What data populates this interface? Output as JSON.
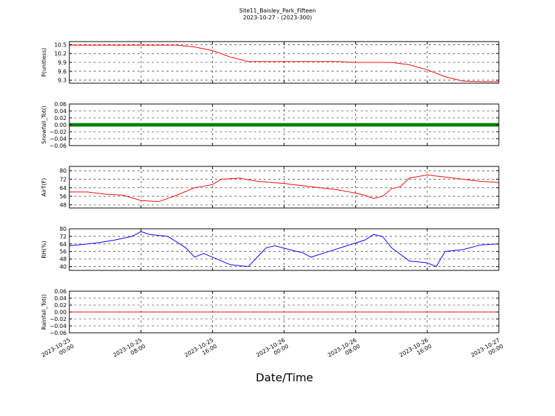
{
  "figure": {
    "title": "Site11_Baisley_Park_Fifteen",
    "subtitle": "2023-10-27 - (2023-300)",
    "xlabel": "Date/Time"
  },
  "chart_data": {
    "type": "line",
    "x_ticks": [
      {
        "at": "2023-10-25 00:00",
        "line1": "2023-10-25",
        "line2": "00:00"
      },
      {
        "at": "2023-10-25 08:00",
        "line1": "2023-10-25",
        "line2": "08:00"
      },
      {
        "at": "2023-10-25 16:00",
        "line1": "2023-10-25",
        "line2": "16:00"
      },
      {
        "at": "2023-10-26 00:00",
        "line1": "2023-10-26",
        "line2": "00:00"
      },
      {
        "at": "2023-10-26 08:00",
        "line1": "2023-10-26",
        "line2": "08:00"
      },
      {
        "at": "2023-10-26 16:00",
        "line1": "2023-10-26",
        "line2": "16:00"
      },
      {
        "at": "2023-10-27 00:00",
        "line1": "2023-10-27",
        "line2": "00:00"
      }
    ],
    "xlim": [
      "2023-10-25 00:00",
      "2023-10-27 00:00"
    ],
    "panels": [
      {
        "ylabel": "P(unitless)",
        "ylim": [
          9.2,
          10.6
        ],
        "yticks": [
          9.3,
          9.6,
          9.9,
          10.2,
          10.5
        ],
        "ytick_labels": [
          "9.3",
          "9.6",
          "9.9",
          "10.2",
          "10.5"
        ],
        "color": "#ff0000",
        "style": "line",
        "points": [
          [
            "2023-10-25 00:00",
            10.48
          ],
          [
            "2023-10-25 06:00",
            10.48
          ],
          [
            "2023-10-25 12:00",
            10.48
          ],
          [
            "2023-10-25 14:00",
            10.42
          ],
          [
            "2023-10-25 16:00",
            10.3
          ],
          [
            "2023-10-25 18:00",
            10.08
          ],
          [
            "2023-10-25 20:00",
            9.93
          ],
          [
            "2023-10-26 04:00",
            9.93
          ],
          [
            "2023-10-26 06:00",
            9.93
          ],
          [
            "2023-10-26 08:00",
            9.9
          ],
          [
            "2023-10-26 12:00",
            9.9
          ],
          [
            "2023-10-26 14:00",
            9.82
          ],
          [
            "2023-10-26 16:00",
            9.65
          ],
          [
            "2023-10-26 18:00",
            9.42
          ],
          [
            "2023-10-26 20:00",
            9.27
          ],
          [
            "2023-10-26 22:00",
            9.25
          ],
          [
            "2023-10-27 00:00",
            9.25
          ]
        ]
      },
      {
        "ylabel": "Snowfall_Tot()",
        "ylim": [
          -0.06,
          0.06
        ],
        "yticks": [
          -0.06,
          -0.04,
          -0.02,
          0.0,
          0.02,
          0.04,
          0.06
        ],
        "ytick_labels": [
          "−0.06",
          "−0.04",
          "−0.02",
          "0.00",
          "0.02",
          "0.04",
          "0.06"
        ],
        "color": "#008000",
        "style": "markers",
        "points": [
          [
            "2023-10-25 00:00",
            0.0
          ],
          [
            "2023-10-27 00:00",
            0.0
          ]
        ]
      },
      {
        "ylabel": "AirT(F)",
        "ylim": [
          45,
          84
        ],
        "yticks": [
          48,
          56,
          64,
          72,
          80
        ],
        "ytick_labels": [
          "48",
          "56",
          "64",
          "72",
          "80"
        ],
        "color": "#ff0000",
        "style": "line",
        "points": [
          [
            "2023-10-25 00:00",
            60
          ],
          [
            "2023-10-25 02:00",
            60
          ],
          [
            "2023-10-25 04:00",
            58
          ],
          [
            "2023-10-25 06:00",
            57
          ],
          [
            "2023-10-25 08:00",
            52
          ],
          [
            "2023-10-25 10:00",
            51
          ],
          [
            "2023-10-25 12:00",
            57
          ],
          [
            "2023-10-25 14:00",
            64
          ],
          [
            "2023-10-25 16:00",
            67
          ],
          [
            "2023-10-25 17:00",
            72
          ],
          [
            "2023-10-25 19:00",
            73
          ],
          [
            "2023-10-25 21:00",
            70
          ],
          [
            "2023-10-26 00:00",
            68
          ],
          [
            "2023-10-26 02:00",
            66
          ],
          [
            "2023-10-26 04:00",
            64
          ],
          [
            "2023-10-26 06:00",
            62
          ],
          [
            "2023-10-26 08:00",
            59
          ],
          [
            "2023-10-26 09:00",
            57
          ],
          [
            "2023-10-26 10:00",
            54
          ],
          [
            "2023-10-26 11:00",
            56
          ],
          [
            "2023-10-26 12:00",
            63
          ],
          [
            "2023-10-26 13:00",
            65
          ],
          [
            "2023-10-26 14:00",
            73
          ],
          [
            "2023-10-26 16:00",
            76
          ],
          [
            "2023-10-26 18:00",
            74
          ],
          [
            "2023-10-26 20:00",
            72
          ],
          [
            "2023-10-26 22:00",
            70
          ],
          [
            "2023-10-27 00:00",
            69
          ]
        ]
      },
      {
        "ylabel": "RH(%)",
        "ylim": [
          36,
          80
        ],
        "yticks": [
          40,
          48,
          56,
          64,
          72,
          80
        ],
        "ytick_labels": [
          "40",
          "48",
          "56",
          "64",
          "72",
          "80"
        ],
        "color": "#0000ff",
        "style": "line",
        "points": [
          [
            "2023-10-25 00:00",
            62
          ],
          [
            "2023-10-25 03:00",
            65
          ],
          [
            "2023-10-25 05:00",
            68
          ],
          [
            "2023-10-25 07:00",
            72
          ],
          [
            "2023-10-25 08:00",
            77
          ],
          [
            "2023-10-25 09:00",
            74
          ],
          [
            "2023-10-25 11:00",
            72
          ],
          [
            "2023-10-25 12:00",
            66
          ],
          [
            "2023-10-25 13:00",
            60
          ],
          [
            "2023-10-25 14:00",
            50
          ],
          [
            "2023-10-25 15:00",
            54
          ],
          [
            "2023-10-25 16:00",
            50
          ],
          [
            "2023-10-25 18:00",
            42
          ],
          [
            "2023-10-25 20:00",
            40
          ],
          [
            "2023-10-25 22:00",
            60
          ],
          [
            "2023-10-25 23:00",
            62
          ],
          [
            "2023-10-26 01:00",
            57
          ],
          [
            "2023-10-26 02:00",
            55
          ],
          [
            "2023-10-26 03:00",
            50
          ],
          [
            "2023-10-26 05:00",
            56
          ],
          [
            "2023-10-26 07:00",
            62
          ],
          [
            "2023-10-26 09:00",
            68
          ],
          [
            "2023-10-26 10:00",
            74
          ],
          [
            "2023-10-26 11:00",
            72
          ],
          [
            "2023-10-26 12:00",
            60
          ],
          [
            "2023-10-26 14:00",
            46
          ],
          [
            "2023-10-26 16:00",
            44
          ],
          [
            "2023-10-26 17:00",
            40
          ],
          [
            "2023-10-26 18:00",
            56
          ],
          [
            "2023-10-26 20:00",
            58
          ],
          [
            "2023-10-26 22:00",
            63
          ],
          [
            "2023-10-27 00:00",
            64
          ]
        ]
      },
      {
        "ylabel": "Rainfall_Tot()",
        "ylim": [
          -0.06,
          0.06
        ],
        "yticks": [
          -0.06,
          -0.04,
          -0.02,
          0.0,
          0.02,
          0.04,
          0.06
        ],
        "ytick_labels": [
          "−0.06",
          "−0.04",
          "−0.02",
          "0.00",
          "0.02",
          "0.04",
          "0.06"
        ],
        "color": "#ff0000",
        "style": "line",
        "points": [
          [
            "2023-10-25 00:00",
            0.0
          ],
          [
            "2023-10-27 00:00",
            0.0
          ]
        ]
      }
    ],
    "grid": true
  }
}
